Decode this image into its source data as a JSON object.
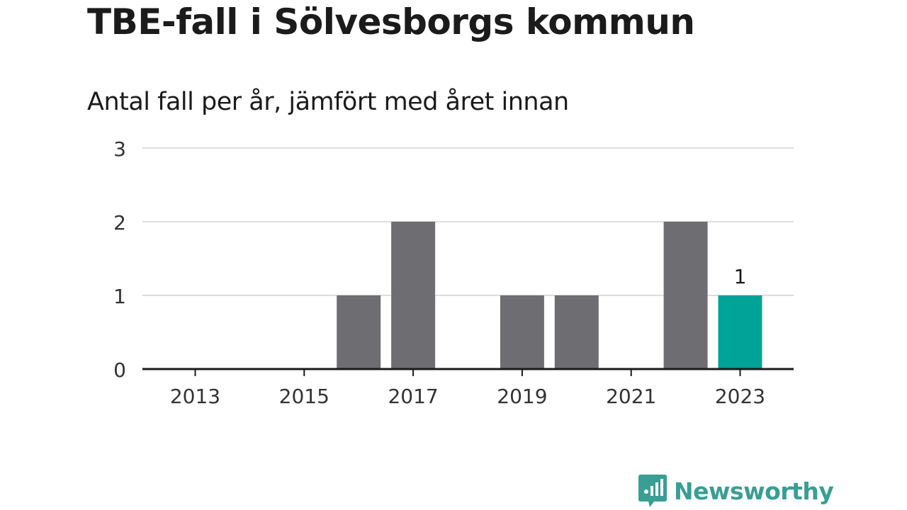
{
  "title": "TBE-fall i Sölvesborgs kommun",
  "subtitle": "Antal fall per år, jämfört med året innan",
  "brand": {
    "name": "Newsworthy",
    "icon": "newsworthy-logo-icon"
  },
  "colors": {
    "bar": "#6e6d72",
    "highlight": "#00a398",
    "grid": "#dddddd",
    "axis": "#1b1b1b",
    "brand": "#3a9e94"
  },
  "chart_data": {
    "type": "bar",
    "title": "TBE-fall i Sölvesborgs kommun",
    "subtitle": "Antal fall per år, jämfört med året innan",
    "xlabel": "",
    "ylabel": "",
    "categories": [
      "2013",
      "2014",
      "2015",
      "2016",
      "2017",
      "2018",
      "2019",
      "2020",
      "2021",
      "2022",
      "2023"
    ],
    "values": [
      0,
      0,
      0,
      1,
      2,
      0,
      1,
      1,
      0,
      2,
      1
    ],
    "x_tick_labels": [
      "2013",
      "2015",
      "2017",
      "2019",
      "2021",
      "2023"
    ],
    "y_ticks": [
      0,
      1,
      2,
      3
    ],
    "ylim": [
      0,
      3
    ],
    "grid": true,
    "highlight_category": "2023",
    "data_labels": [
      {
        "category": "2023",
        "text": "1"
      }
    ]
  }
}
